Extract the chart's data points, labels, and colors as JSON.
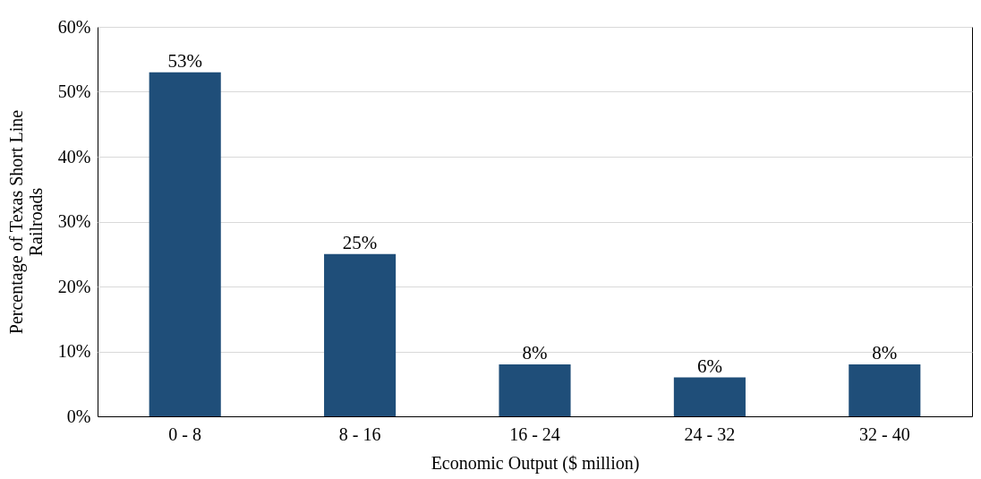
{
  "chart_data": {
    "type": "bar",
    "xlabel": "Economic Output ($ million)",
    "ylabel": "Percentage of Texas Short Line Railroads",
    "categories": [
      "0 - 8",
      "8 - 16",
      "16 - 24",
      "24 - 32",
      "32 - 40"
    ],
    "values": [
      53,
      25,
      8,
      6,
      8
    ],
    "value_labels": [
      "53%",
      "25%",
      "8%",
      "6%",
      "8%"
    ],
    "color": "#1f4e79",
    "ylim": [
      0,
      60
    ],
    "yticks": [
      {
        "value": 0,
        "label": "0%"
      },
      {
        "value": 10,
        "label": "10%"
      },
      {
        "value": 20,
        "label": "20%"
      },
      {
        "value": 30,
        "label": "30%"
      },
      {
        "value": 40,
        "label": "40%"
      },
      {
        "value": 50,
        "label": "50%"
      },
      {
        "value": 60,
        "label": "60%"
      }
    ],
    "grid": "y"
  }
}
